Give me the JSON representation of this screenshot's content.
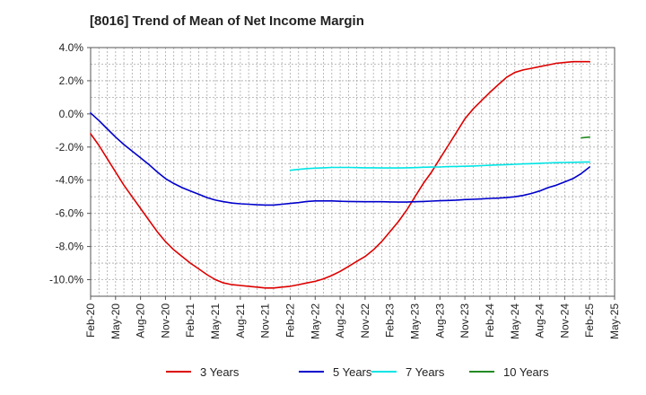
{
  "chart_data": {
    "type": "line",
    "title": "[8016]  Trend of Mean of Net Income Margin",
    "xlabel": "",
    "ylabel": "",
    "x_ticks": [
      "Feb-20",
      "May-20",
      "Aug-20",
      "Nov-20",
      "Feb-21",
      "May-21",
      "Aug-21",
      "Nov-21",
      "Feb-22",
      "May-22",
      "Aug-22",
      "Nov-22",
      "Feb-23",
      "May-23",
      "Aug-23",
      "Nov-23",
      "Feb-24",
      "May-24",
      "Aug-24",
      "Nov-24",
      "Feb-25",
      "May-25"
    ],
    "y_ticks": [
      "4.0%",
      "2.0%",
      "0.0%",
      "-2.0%",
      "-4.0%",
      "-6.0%",
      "-8.0%",
      "-10.0%"
    ],
    "y_tick_values": [
      4,
      2,
      0,
      -2,
      -4,
      -6,
      -8,
      -10
    ],
    "ylim": [
      -11,
      4
    ],
    "x_range": [
      "Feb-20",
      "May-25"
    ],
    "grid": true,
    "legend_position": "bottom",
    "series": [
      {
        "name": "3 Years",
        "color": "#dd0000",
        "x": [
          "Feb-20",
          "Mar-20",
          "Apr-20",
          "May-20",
          "Jun-20",
          "Jul-20",
          "Aug-20",
          "Sep-20",
          "Oct-20",
          "Nov-20",
          "Dec-20",
          "Jan-21",
          "Feb-21",
          "Mar-21",
          "Apr-21",
          "May-21",
          "Jun-21",
          "Jul-21",
          "Aug-21",
          "Sep-21",
          "Oct-21",
          "Nov-21",
          "Dec-21",
          "Jan-22",
          "Feb-22",
          "Mar-22",
          "Apr-22",
          "May-22",
          "Jun-22",
          "Jul-22",
          "Aug-22",
          "Sep-22",
          "Oct-22",
          "Nov-22",
          "Dec-22",
          "Jan-23",
          "Feb-23",
          "Mar-23",
          "Apr-23",
          "May-23",
          "Jun-23",
          "Jul-23",
          "Aug-23",
          "Sep-23",
          "Oct-23",
          "Nov-23",
          "Dec-23",
          "Jan-24",
          "Feb-24",
          "Mar-24",
          "Apr-24",
          "May-24",
          "Jun-24",
          "Jul-24",
          "Aug-24",
          "Sep-24",
          "Oct-24",
          "Nov-24",
          "Dec-24",
          "Jan-25",
          "Feb-25"
        ],
        "values": [
          -1.2,
          -1.9,
          -2.7,
          -3.5,
          -4.3,
          -5.0,
          -5.7,
          -6.4,
          -7.1,
          -7.7,
          -8.2,
          -8.6,
          -9.0,
          -9.35,
          -9.7,
          -10.0,
          -10.2,
          -10.3,
          -10.35,
          -10.4,
          -10.45,
          -10.5,
          -10.5,
          -10.45,
          -10.4,
          -10.3,
          -10.2,
          -10.1,
          -9.95,
          -9.75,
          -9.5,
          -9.2,
          -8.9,
          -8.6,
          -8.2,
          -7.7,
          -7.1,
          -6.5,
          -5.8,
          -5.0,
          -4.2,
          -3.5,
          -2.7,
          -1.9,
          -1.1,
          -0.3,
          0.3,
          0.8,
          1.3,
          1.75,
          2.2,
          2.5,
          2.65,
          2.75,
          2.85,
          2.95,
          3.05,
          3.1,
          3.15,
          3.15,
          3.15
        ]
      },
      {
        "name": "5 Years",
        "color": "#0000cc",
        "x": [
          "Feb-20",
          "Mar-20",
          "Apr-20",
          "May-20",
          "Jun-20",
          "Jul-20",
          "Aug-20",
          "Sep-20",
          "Oct-20",
          "Nov-20",
          "Dec-20",
          "Jan-21",
          "Feb-21",
          "Mar-21",
          "Apr-21",
          "May-21",
          "Jun-21",
          "Jul-21",
          "Aug-21",
          "Sep-21",
          "Oct-21",
          "Nov-21",
          "Dec-21",
          "Jan-22",
          "Feb-22",
          "Mar-22",
          "Apr-22",
          "May-22",
          "Jun-22",
          "Jul-22",
          "Aug-22",
          "Sep-22",
          "Oct-22",
          "Nov-22",
          "Dec-22",
          "Jan-23",
          "Feb-23",
          "Mar-23",
          "Apr-23",
          "May-23",
          "Jun-23",
          "Jul-23",
          "Aug-23",
          "Sep-23",
          "Oct-23",
          "Nov-23",
          "Dec-23",
          "Jan-24",
          "Feb-24",
          "Mar-24",
          "Apr-24",
          "May-24",
          "Jun-24",
          "Jul-24",
          "Aug-24",
          "Sep-24",
          "Oct-24",
          "Nov-24",
          "Dec-24",
          "Jan-25",
          "Feb-25"
        ],
        "values": [
          0.05,
          -0.4,
          -0.9,
          -1.4,
          -1.85,
          -2.25,
          -2.65,
          -3.05,
          -3.5,
          -3.9,
          -4.2,
          -4.45,
          -4.65,
          -4.85,
          -5.05,
          -5.2,
          -5.3,
          -5.38,
          -5.42,
          -5.45,
          -5.48,
          -5.5,
          -5.5,
          -5.45,
          -5.4,
          -5.35,
          -5.28,
          -5.25,
          -5.25,
          -5.25,
          -5.27,
          -5.28,
          -5.29,
          -5.3,
          -5.3,
          -5.3,
          -5.31,
          -5.32,
          -5.32,
          -5.3,
          -5.28,
          -5.26,
          -5.24,
          -5.22,
          -5.2,
          -5.17,
          -5.15,
          -5.13,
          -5.1,
          -5.08,
          -5.05,
          -5.0,
          -4.92,
          -4.8,
          -4.65,
          -4.45,
          -4.3,
          -4.1,
          -3.9,
          -3.6,
          -3.2
        ]
      },
      {
        "name": "7 Years",
        "color": "#00e5e5",
        "x": [
          "Feb-22",
          "Mar-22",
          "Apr-22",
          "May-22",
          "Jun-22",
          "Jul-22",
          "Aug-22",
          "Sep-22",
          "Oct-22",
          "Nov-22",
          "Dec-22",
          "Jan-23",
          "Feb-23",
          "Mar-23",
          "Apr-23",
          "May-23",
          "Jun-23",
          "Jul-23",
          "Aug-23",
          "Sep-23",
          "Oct-23",
          "Nov-23",
          "Dec-23",
          "Jan-24",
          "Feb-24",
          "Mar-24",
          "Apr-24",
          "May-24",
          "Jun-24",
          "Jul-24",
          "Aug-24",
          "Sep-24",
          "Oct-24",
          "Nov-24",
          "Dec-24",
          "Jan-25",
          "Feb-25"
        ],
        "values": [
          -3.4,
          -3.35,
          -3.3,
          -3.27,
          -3.25,
          -3.23,
          -3.23,
          -3.23,
          -3.24,
          -3.25,
          -3.25,
          -3.26,
          -3.26,
          -3.26,
          -3.25,
          -3.24,
          -3.22,
          -3.21,
          -3.2,
          -3.18,
          -3.17,
          -3.16,
          -3.14,
          -3.12,
          -3.1,
          -3.08,
          -3.06,
          -3.04,
          -3.02,
          -3.0,
          -2.98,
          -2.96,
          -2.94,
          -2.93,
          -2.92,
          -2.91,
          -2.9
        ]
      },
      {
        "name": "10 Years",
        "color": "#228b22",
        "x": [
          "Jan-25",
          "Feb-25"
        ],
        "values": [
          -1.45,
          -1.4
        ]
      }
    ]
  }
}
